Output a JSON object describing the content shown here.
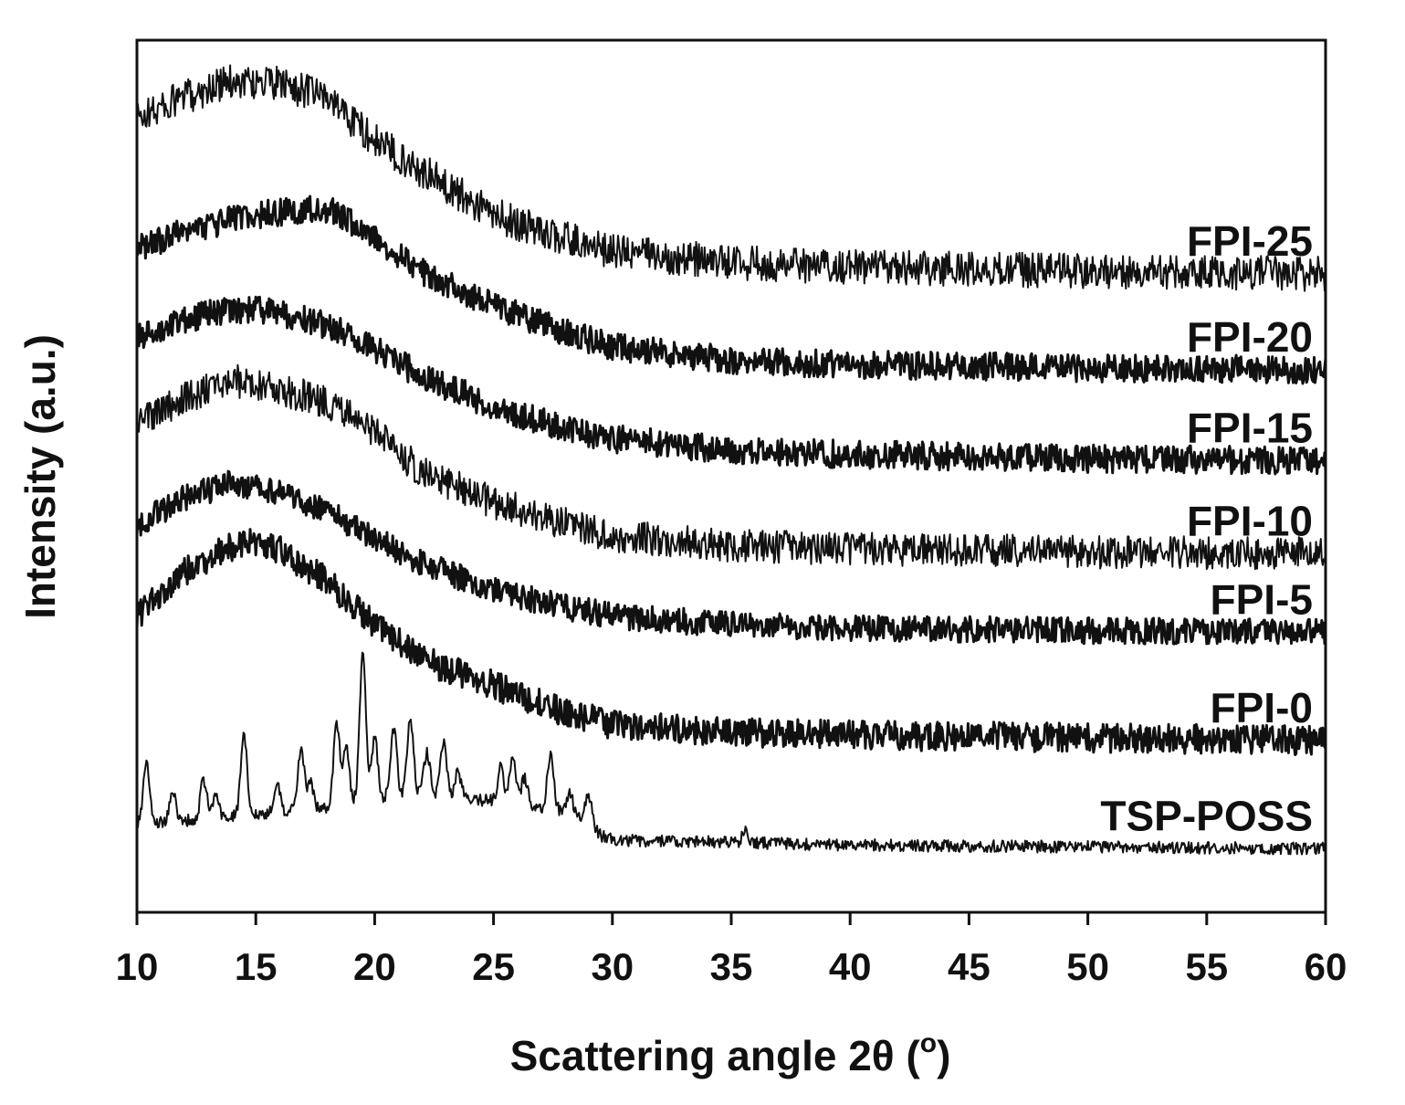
{
  "chart_data": {
    "type": "line",
    "xlabel_main": "Scattering angle 2θ (",
    "xlabel_unit": "o",
    "xlabel_end": ")",
    "ylabel": "Intensity (a.u.)",
    "xlim": [
      10,
      60
    ],
    "ylim": [
      0,
      100
    ],
    "x_ticks": [
      10,
      15,
      20,
      25,
      30,
      35,
      40,
      45,
      50,
      55,
      60
    ],
    "y_ticks_shown": false,
    "grid": false,
    "series": [
      {
        "name": "FPI-25",
        "noise": 2.0,
        "x": [
          10,
          12,
          14,
          16,
          18,
          20,
          22,
          25,
          27,
          30,
          35,
          40,
          50,
          60
        ],
        "y": [
          91,
          93.5,
          95.3,
          95,
          93.5,
          88.5,
          85,
          80,
          78,
          75.8,
          74.5,
          74,
          73.5,
          73.2
        ]
      },
      {
        "name": "FPI-20",
        "noise": 1.6,
        "x": [
          10,
          12,
          14,
          16,
          18,
          20,
          22,
          25,
          28,
          30,
          35,
          40,
          50,
          60
        ],
        "y": [
          76,
          78,
          79.5,
          80.3,
          80.7,
          77.5,
          73.5,
          69.5,
          66.5,
          64.8,
          63.3,
          62.8,
          62.4,
          62.2
        ]
      },
      {
        "name": "FPI-15",
        "noise": 1.6,
        "x": [
          10,
          12,
          14,
          16,
          18,
          20,
          22,
          25,
          28,
          30,
          35,
          40,
          50,
          60
        ],
        "y": [
          66,
          68,
          69.2,
          68.8,
          67.3,
          64.5,
          61.5,
          58,
          55.5,
          54.3,
          53,
          52.5,
          52,
          51.8
        ]
      },
      {
        "name": "FPI-10",
        "noise": 1.9,
        "x": [
          10,
          12,
          14,
          16,
          18,
          20,
          22,
          25,
          28,
          30,
          35,
          40,
          50,
          60
        ],
        "y": [
          56,
          59,
          61,
          60,
          58.5,
          55,
          50.5,
          47,
          44.5,
          43.2,
          42,
          41.7,
          41.3,
          41.1
        ]
      },
      {
        "name": "FPI-5",
        "noise": 1.5,
        "x": [
          10,
          12,
          14,
          16,
          18,
          20,
          22,
          25,
          28,
          30,
          35,
          40,
          50,
          60
        ],
        "y": [
          44.5,
          47.5,
          49.2,
          48,
          46,
          43,
          40,
          37,
          35,
          34,
          33,
          32.6,
          32.3,
          32.1
        ]
      },
      {
        "name": "FPI-0",
        "noise": 1.7,
        "x": [
          10,
          12,
          14,
          15,
          16,
          18,
          20,
          22,
          25,
          28,
          30,
          35,
          40,
          50,
          60
        ],
        "y": [
          34,
          39,
          42,
          42.5,
          41.5,
          38,
          33,
          29,
          26,
          23,
          21.5,
          20.7,
          20.3,
          20,
          19.7
        ]
      },
      {
        "name": "TSP-POSS",
        "noise": 0.7,
        "x": [
          10,
          12,
          14,
          16,
          18,
          20,
          22,
          24,
          26,
          28,
          29,
          29.5,
          30,
          35,
          40,
          50,
          60
        ],
        "y": [
          10,
          10.5,
          11,
          11.5,
          12,
          13,
          13.5,
          13,
          12.5,
          11.5,
          10.5,
          8.8,
          8.3,
          8,
          7.7,
          7.5,
          7.3
        ],
        "peaks": [
          [
            10.4,
            7.5
          ],
          [
            11.5,
            3.5
          ],
          [
            12.8,
            4.5
          ],
          [
            13.3,
            2.5
          ],
          [
            14.5,
            9.5
          ],
          [
            15.9,
            3
          ],
          [
            16.9,
            7
          ],
          [
            17.3,
            3
          ],
          [
            18.4,
            9.5
          ],
          [
            18.8,
            6.5
          ],
          [
            19.5,
            17
          ],
          [
            20,
            7
          ],
          [
            20.8,
            8
          ],
          [
            21.5,
            9
          ],
          [
            22.2,
            5
          ],
          [
            22.9,
            6.5
          ],
          [
            23.5,
            3
          ],
          [
            25.3,
            4
          ],
          [
            25.8,
            5
          ],
          [
            26.3,
            3
          ],
          [
            27.4,
            6.5
          ],
          [
            28.2,
            2.5
          ],
          [
            29,
            3
          ],
          [
            35.6,
            1.5
          ]
        ]
      }
    ]
  }
}
